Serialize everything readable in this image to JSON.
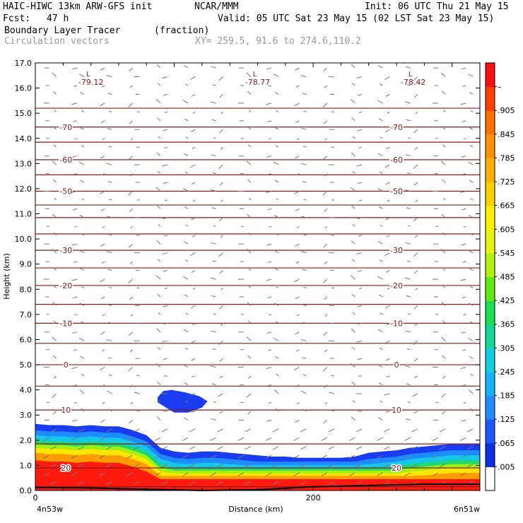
{
  "header": {
    "model": "HAIC-HIWC 13km ARW-GFS init",
    "org": "NCAR/MMM",
    "init": "Init: 06 UTC Thu 21 May 15",
    "fcst_label": "Fcst:",
    "fcst_value": "47 h",
    "valid": "Valid: 05 UTC Sat 23 May 15 (02 LST Sat 23 May 15)",
    "field": "Boundary Layer Tracer",
    "units": "(fraction)",
    "vectors": "Circulation vectors",
    "xy": "XY= 259.5, 91.6 to 274.6,110.2"
  },
  "chart_data": {
    "type": "heatmap",
    "xlabel": "Distance (km)",
    "ylabel": "Height (km)",
    "xlim": [
      0,
      320
    ],
    "ylim": [
      0,
      17
    ],
    "x_ticks": [
      {
        "v": 0,
        "label": "0"
      },
      {
        "v": 200,
        "label": "200"
      }
    ],
    "x_endpoints": {
      "left": "4n53w",
      "right": "6n51w"
    },
    "y_ticks": [
      "0.0",
      "1.0",
      "2.0",
      "3.0",
      "4.0",
      "5.0",
      "6.0",
      "7.0",
      "8.0",
      "9.0",
      "10.0",
      "11.0",
      "12.0",
      "13.0",
      "14.0",
      "15.0",
      "16.0",
      "17.0"
    ],
    "colorbar": {
      "colors": [
        "#ffffff",
        "#0a2ee0",
        "#1a56ff",
        "#1e8cff",
        "#14b4ff",
        "#10d0e0",
        "#10d896",
        "#18e050",
        "#60ec10",
        "#b0f410",
        "#e8f410",
        "#fff000",
        "#ffd000",
        "#ffb000",
        "#ff9000",
        "#ff7000",
        "#ff4000",
        "#ff1010"
      ],
      "labels": [
        ".005",
        ".065",
        ".125",
        ".185",
        ".245",
        ".305",
        ".365",
        ".425",
        ".485",
        ".545",
        ".605",
        ".665",
        ".725",
        ".785",
        ".845",
        ".905",
        "–"
      ]
    },
    "isotherm_color": "#8b1a1a",
    "isotherms": [
      {
        "y": 0.15
      },
      {
        "y": 0.9,
        "label": "20"
      },
      {
        "y": 1.85
      },
      {
        "y": 3.2,
        "label": "10"
      },
      {
        "y": 4.15
      },
      {
        "y": 5.0,
        "label": "0"
      },
      {
        "y": 5.85
      },
      {
        "y": 6.65,
        "label": "-10"
      },
      {
        "y": 7.4
      },
      {
        "y": 8.15,
        "label": "-20"
      },
      {
        "y": 8.85
      },
      {
        "y": 9.55,
        "label": "-30"
      },
      {
        "y": 10.2
      },
      {
        "y": 10.85
      },
      {
        "y": 11.35
      },
      {
        "y": 11.9,
        "label": "-50"
      },
      {
        "y": 12.55
      },
      {
        "y": 13.15,
        "label": "-60"
      },
      {
        "y": 13.85
      },
      {
        "y": 14.45,
        "label": "-70"
      },
      {
        "y": 15.2
      }
    ],
    "lows": [
      {
        "x": 40,
        "y": 16.3,
        "value": "-79.12"
      },
      {
        "x": 160,
        "y": 16.3,
        "value": "-78.77"
      },
      {
        "x": 272,
        "y": 16.3,
        "value": "-78.42"
      }
    ]
  }
}
